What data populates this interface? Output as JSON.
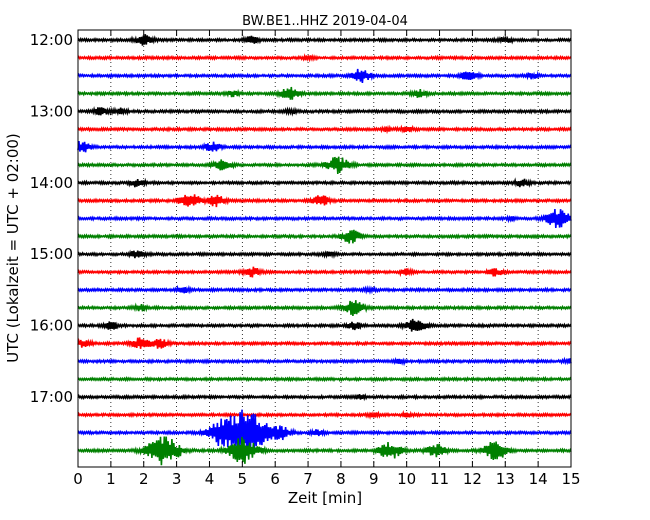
{
  "chart_data": {
    "type": "line",
    "title": "BW.BE1..HHZ 2019-04-04",
    "xlabel": "Zeit  [min]",
    "ylabel": "UTC (Lokalzeit = UTC + 02:00)",
    "xlim": [
      0,
      15
    ],
    "x_ticks": [
      "0",
      "1",
      "2",
      "3",
      "4",
      "5",
      "6",
      "7",
      "8",
      "9",
      "10",
      "11",
      "12",
      "13",
      "14",
      "15"
    ],
    "y_ticks": [
      {
        "label": "12:00",
        "row": 0
      },
      {
        "label": "13:00",
        "row": 4
      },
      {
        "label": "14:00",
        "row": 8
      },
      {
        "label": "15:00",
        "row": 12
      },
      {
        "label": "16:00",
        "row": 16
      },
      {
        "label": "17:00",
        "row": 20
      }
    ],
    "row_interval_minutes": 15,
    "grid": "vertical dotted",
    "color_cycle": [
      "#000000",
      "#ff0000",
      "#0000ff",
      "#008000"
    ],
    "rows": [
      {
        "start": "12:00",
        "events": [
          [
            2.0,
            0.6
          ],
          [
            5.3,
            0.4
          ],
          [
            13.0,
            0.3
          ]
        ]
      },
      {
        "start": "12:15",
        "events": [
          [
            7.0,
            0.2
          ]
        ]
      },
      {
        "start": "12:30",
        "events": [
          [
            8.6,
            0.7
          ],
          [
            11.9,
            0.5
          ],
          [
            13.8,
            0.3
          ]
        ]
      },
      {
        "start": "12:45",
        "events": [
          [
            6.4,
            0.7
          ],
          [
            4.7,
            0.3
          ],
          [
            10.4,
            0.4
          ]
        ]
      },
      {
        "start": "13:00",
        "events": [
          [
            0.7,
            0.4
          ],
          [
            1.3,
            0.3
          ],
          [
            6.5,
            0.2
          ]
        ]
      },
      {
        "start": "13:15",
        "events": [
          [
            10.0,
            0.3
          ],
          [
            9.4,
            0.2
          ]
        ]
      },
      {
        "start": "13:30",
        "events": [
          [
            0.1,
            0.6
          ],
          [
            4.1,
            0.5
          ]
        ]
      },
      {
        "start": "13:45",
        "events": [
          [
            4.4,
            0.6
          ],
          [
            7.9,
            0.9
          ]
        ]
      },
      {
        "start": "14:00",
        "events": [
          [
            1.8,
            0.4
          ],
          [
            13.5,
            0.4
          ]
        ]
      },
      {
        "start": "14:15",
        "events": [
          [
            3.4,
            0.8
          ],
          [
            4.2,
            0.6
          ],
          [
            7.4,
            0.6
          ]
        ]
      },
      {
        "start": "14:30",
        "events": [
          [
            14.6,
            1.0
          ],
          [
            13.2,
            0.2
          ]
        ]
      },
      {
        "start": "14:45",
        "events": [
          [
            8.3,
            0.7
          ]
        ]
      },
      {
        "start": "15:00",
        "events": [
          [
            1.8,
            0.4
          ],
          [
            7.6,
            0.3
          ]
        ]
      },
      {
        "start": "15:15",
        "events": [
          [
            5.3,
            0.5
          ],
          [
            12.7,
            0.4
          ],
          [
            10.0,
            0.3
          ]
        ]
      },
      {
        "start": "15:30",
        "events": [
          [
            3.2,
            0.3
          ],
          [
            8.9,
            0.2
          ]
        ]
      },
      {
        "start": "15:45",
        "events": [
          [
            8.4,
            0.8
          ],
          [
            1.9,
            0.3
          ]
        ]
      },
      {
        "start": "16:00",
        "events": [
          [
            1.0,
            0.4
          ],
          [
            10.3,
            0.8
          ],
          [
            8.4,
            0.4
          ]
        ]
      },
      {
        "start": "16:15",
        "events": [
          [
            1.9,
            0.6
          ],
          [
            2.5,
            0.5
          ],
          [
            0.2,
            0.4
          ]
        ]
      },
      {
        "start": "16:30",
        "events": [
          [
            9.8,
            0.2
          ],
          [
            15.0,
            0.3
          ]
        ]
      },
      {
        "start": "16:45",
        "events": []
      },
      {
        "start": "17:00",
        "events": [
          [
            8.6,
            0.2
          ]
        ]
      },
      {
        "start": "17:15",
        "events": [
          [
            9.0,
            0.2
          ],
          [
            10.0,
            0.2
          ]
        ]
      },
      {
        "start": "17:30",
        "events": [
          [
            5.1,
            2.6
          ],
          [
            4.3,
            0.8
          ],
          [
            6.2,
            0.6
          ],
          [
            7.3,
            0.3
          ]
        ]
      },
      {
        "start": "17:45",
        "events": [
          [
            2.6,
            1.6
          ],
          [
            5.0,
            1.4
          ],
          [
            9.5,
            0.9
          ],
          [
            10.9,
            0.7
          ],
          [
            12.7,
            1.0
          ]
        ]
      }
    ]
  }
}
